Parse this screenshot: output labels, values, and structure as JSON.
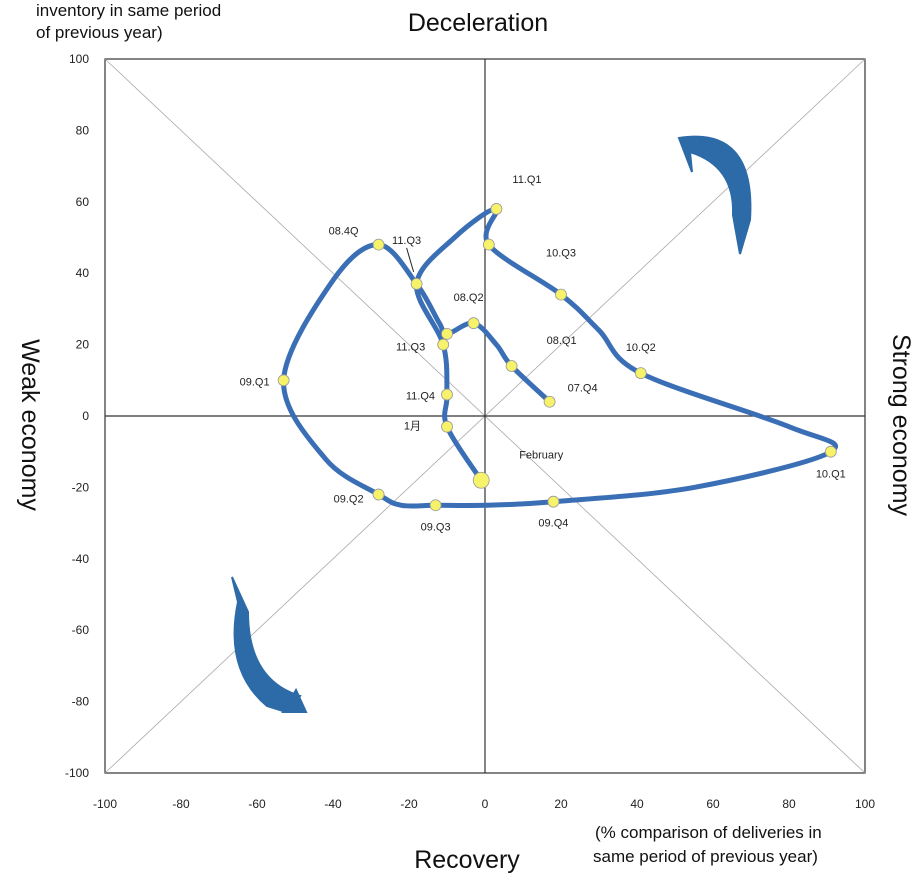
{
  "chart_data": {
    "type": "line",
    "xlabel_lines": [
      "(% comparison of deliveries in",
      "same period of previous year)"
    ],
    "ylabel_lines": [
      "inventory in same period",
      "of previous year)"
    ],
    "quadrants": {
      "top": "Deceleration",
      "bottom": "Recovery",
      "left": "Weak economy",
      "right": "Strong economy"
    },
    "xlim": [
      -100,
      100
    ],
    "ylim": [
      -100,
      100
    ],
    "xticks": [
      -100,
      -80,
      -60,
      -40,
      -20,
      0,
      20,
      40,
      60,
      80,
      100
    ],
    "yticks": [
      -100,
      -80,
      -60,
      -40,
      -20,
      0,
      20,
      40,
      60,
      80,
      100
    ],
    "grid": false,
    "diagonals": true,
    "line_color": "#3b6fb5",
    "marker_color": "#f6f26a",
    "arrow_color": "#2c6aa8",
    "series": [
      {
        "values": [
          {
            "x": 17,
            "y": 4
          },
          {
            "x": 7,
            "y": 14
          },
          {
            "x": 3,
            "y": 20
          },
          {
            "x": -3,
            "y": 26
          },
          {
            "x": -10,
            "y": 23
          },
          {
            "x": -12,
            "y": 26
          },
          {
            "x": -18,
            "y": 37
          },
          {
            "x": -28,
            "y": 48
          },
          {
            "x": -40,
            "y": 38
          },
          {
            "x": -53,
            "y": 10
          },
          {
            "x": -42,
            "y": -12
          },
          {
            "x": -28,
            "y": -22
          },
          {
            "x": -22,
            "y": -25
          },
          {
            "x": -13,
            "y": -25
          },
          {
            "x": 0,
            "y": -25
          },
          {
            "x": 18,
            "y": -24
          },
          {
            "x": 55,
            "y": -20
          },
          {
            "x": 91,
            "y": -10
          },
          {
            "x": 80,
            "y": -3
          },
          {
            "x": 41,
            "y": 12
          },
          {
            "x": 30,
            "y": 24
          },
          {
            "x": 20,
            "y": 34
          },
          {
            "x": 1,
            "y": 48
          },
          {
            "x": 3,
            "y": 58
          },
          {
            "x": -8,
            "y": 50
          },
          {
            "x": -18,
            "y": 37
          },
          {
            "x": -11,
            "y": 20
          },
          {
            "x": -10,
            "y": 6
          },
          {
            "x": -10,
            "y": -3
          },
          {
            "x": -1,
            "y": -18
          }
        ]
      }
    ],
    "markers": [
      {
        "label": "07.Q4",
        "x": 17,
        "y": 4
      },
      {
        "label": "08.Q1",
        "x": 7,
        "y": 14
      },
      {
        "label": "08.Q2",
        "x": -3,
        "y": 26
      },
      {
        "label": "",
        "x": -10,
        "y": 23
      },
      {
        "label": "08.4Q",
        "x": -28,
        "y": 48
      },
      {
        "label": "09.Q1",
        "x": -53,
        "y": 10
      },
      {
        "label": "09.Q2",
        "x": -28,
        "y": -22
      },
      {
        "label": "09.Q3",
        "x": -13,
        "y": -25
      },
      {
        "label": "09.Q4",
        "x": 18,
        "y": -24
      },
      {
        "label": "10.Q1",
        "x": 91,
        "y": -10
      },
      {
        "label": "10.Q2",
        "x": 41,
        "y": 12
      },
      {
        "label": "10.Q3",
        "x": 20,
        "y": 34
      },
      {
        "label": "",
        "x": 1,
        "y": 48
      },
      {
        "label": "11.Q1",
        "x": 3,
        "y": 58
      },
      {
        "label": "11.Q3",
        "x": -18,
        "y": 37
      },
      {
        "label": "11.Q3",
        "x": -11,
        "y": 20
      },
      {
        "label": "11.Q4",
        "x": -10,
        "y": 6
      },
      {
        "label": "1月",
        "x": -10,
        "y": -3
      },
      {
        "label": "February",
        "x": -1,
        "y": -18,
        "big": true
      }
    ]
  }
}
